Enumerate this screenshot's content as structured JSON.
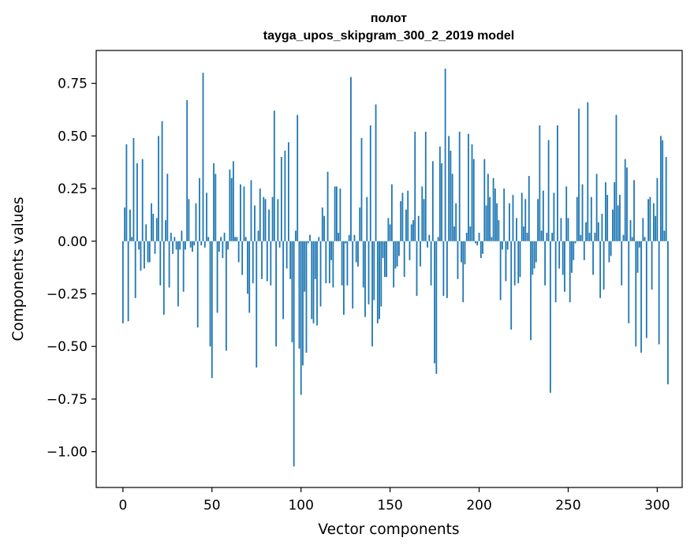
{
  "chart_data": {
    "type": "bar",
    "title": "полот",
    "subtitle": "tayga_upos_skipgram_300_2_2019 model",
    "xlabel": "Vector components",
    "ylabel": "Components values",
    "xlim": [
      -15,
      314
    ],
    "ylim": [
      -1.17,
      0.906
    ],
    "xticks": [
      0,
      50,
      100,
      150,
      200,
      250,
      300
    ],
    "yticks": [
      -1.0,
      -0.75,
      -0.5,
      -0.25,
      0.0,
      0.25,
      0.5,
      0.75
    ],
    "ytick_labels": [
      "−1.00",
      "−0.75",
      "−0.50",
      "−0.25",
      "0.00",
      "0.25",
      "0.50",
      "0.75"
    ],
    "bar_color": "#1f77b4",
    "grid": false,
    "values": [
      -0.39,
      0.16,
      0.46,
      -0.38,
      0.15,
      0.02,
      0.49,
      -0.27,
      0.37,
      -0.04,
      -0.14,
      0.39,
      -0.13,
      0.08,
      -0.1,
      -0.1,
      0.18,
      0.13,
      -0.06,
      0.11,
      0.5,
      -0.21,
      0.57,
      -0.35,
      0.1,
      0.32,
      -0.22,
      0.04,
      -0.06,
      0.02,
      -0.04,
      -0.31,
      -0.04,
      0.05,
      -0.24,
      -0.04,
      0.67,
      0.2,
      -0.03,
      -0.05,
      -0.02,
      0.18,
      -0.41,
      0.3,
      -0.02,
      0.8,
      -0.03,
      0.23,
      0.02,
      -0.5,
      -0.65,
      0.37,
      0.32,
      -0.34,
      -0.05,
      0.02,
      -0.08,
      0.04,
      -0.52,
      -0.04,
      0.34,
      0.3,
      0.38,
      0.02,
      0.02,
      -0.1,
      0.27,
      -0.16,
      0.26,
      0.02,
      -0.25,
      -0.34,
      0.29,
      -0.2,
      0.17,
      -0.6,
      0.05,
      0.25,
      -0.18,
      0.21,
      0.2,
      -0.19,
      0.15,
      -0.21,
      0.21,
      0.62,
      -0.5,
      0.2,
      -0.03,
      0.4,
      -0.37,
      0.43,
      -0.13,
      0.47,
      -0.18,
      -0.48,
      -1.07,
      0.05,
      0.6,
      -0.51,
      -0.73,
      -0.59,
      -0.24,
      -0.53,
      -0.01,
      0.03,
      -0.37,
      -0.39,
      -0.18,
      -0.4,
      0.02,
      -0.31,
      0.16,
      0.12,
      -0.2,
      0.33,
      -0.2,
      -0.09,
      -0.22,
      0.26,
      0.26,
      0.04,
      0.25,
      -0.21,
      -0.35,
      -0.01,
      -0.21,
      0.03,
      0.78,
      -0.32,
      0.03,
      -0.1,
      -0.12,
      0.16,
      0.49,
      -0.22,
      -0.36,
      0.21,
      -0.3,
      0.55,
      -0.5,
      -0.28,
      0.65,
      -0.39,
      -0.37,
      -0.31,
      -0.08,
      -0.17,
      -0.17,
      0.11,
      0.08,
      0.27,
      -0.22,
      -0.13,
      -0.12,
      -0.07,
      0.19,
      0.23,
      -0.17,
      0.15,
      0.24,
      -0.09,
      0.08,
      0.1,
      0.52,
      -0.26,
      0.12,
      -0.12,
      0.26,
      0.2,
      0.52,
      -0.03,
      0.03,
      -0.21,
      0.38,
      -0.58,
      -0.63,
      0.02,
      0.45,
      0.37,
      -0.26,
      0.82,
      -0.27,
      0.5,
      0.43,
      0.32,
      0.07,
      0.18,
      -0.18,
      0.52,
      -0.1,
      -0.29,
      -0.11,
      0.04,
      0.51,
      0.07,
      0.46,
      0.39,
      -0.01,
      -0.02,
      0.04,
      -0.08,
      -0.06,
      0.39,
      0.17,
      0.32,
      0.21,
      0.02,
      0.3,
      0.25,
      0.18,
      0.1,
      -0.28,
      -0.04,
      0.25,
      -0.19,
      -0.04,
      0.18,
      -0.42,
      0.22,
      -0.21,
      0.11,
      -0.2,
      -0.17,
      0.23,
      0.07,
      0.2,
      0.04,
      0.31,
      -0.47,
      -0.16,
      -0.13,
      -0.1,
      0.2,
      0.55,
      0.05,
      0.24,
      -0.21,
      0.04,
      0.48,
      -0.72,
      0.04,
      0.23,
      -0.29,
      0.55,
      -0.13,
      0.11,
      -0.16,
      -0.24,
      0.26,
      0.11,
      -0.29,
      -0.15,
      -0.09,
      -0.01,
      0.21,
      0.63,
      0.03,
      0.27,
      -0.09,
      0.09,
      0.66,
      0.04,
      0.21,
      -0.16,
      0.04,
      0.32,
      0.09,
      -0.27,
      0.13,
      -0.23,
      0.28,
      0.22,
      -0.1,
      -0.07,
      0.15,
      0.28,
      0.6,
      0.17,
      0.22,
      -0.21,
      0.03,
      0.39,
      0.35,
      -0.39,
      0.1,
      0.02,
      0.29,
      -0.5,
      -0.15,
      -0.03,
      -0.53,
      0.11,
      0.02,
      -0.46,
      0.2,
      0.21,
      -0.23,
      0.18,
      0.12,
      0.3,
      -0.49,
      0.5,
      0.48,
      0.05,
      0.4,
      -0.68
    ]
  }
}
